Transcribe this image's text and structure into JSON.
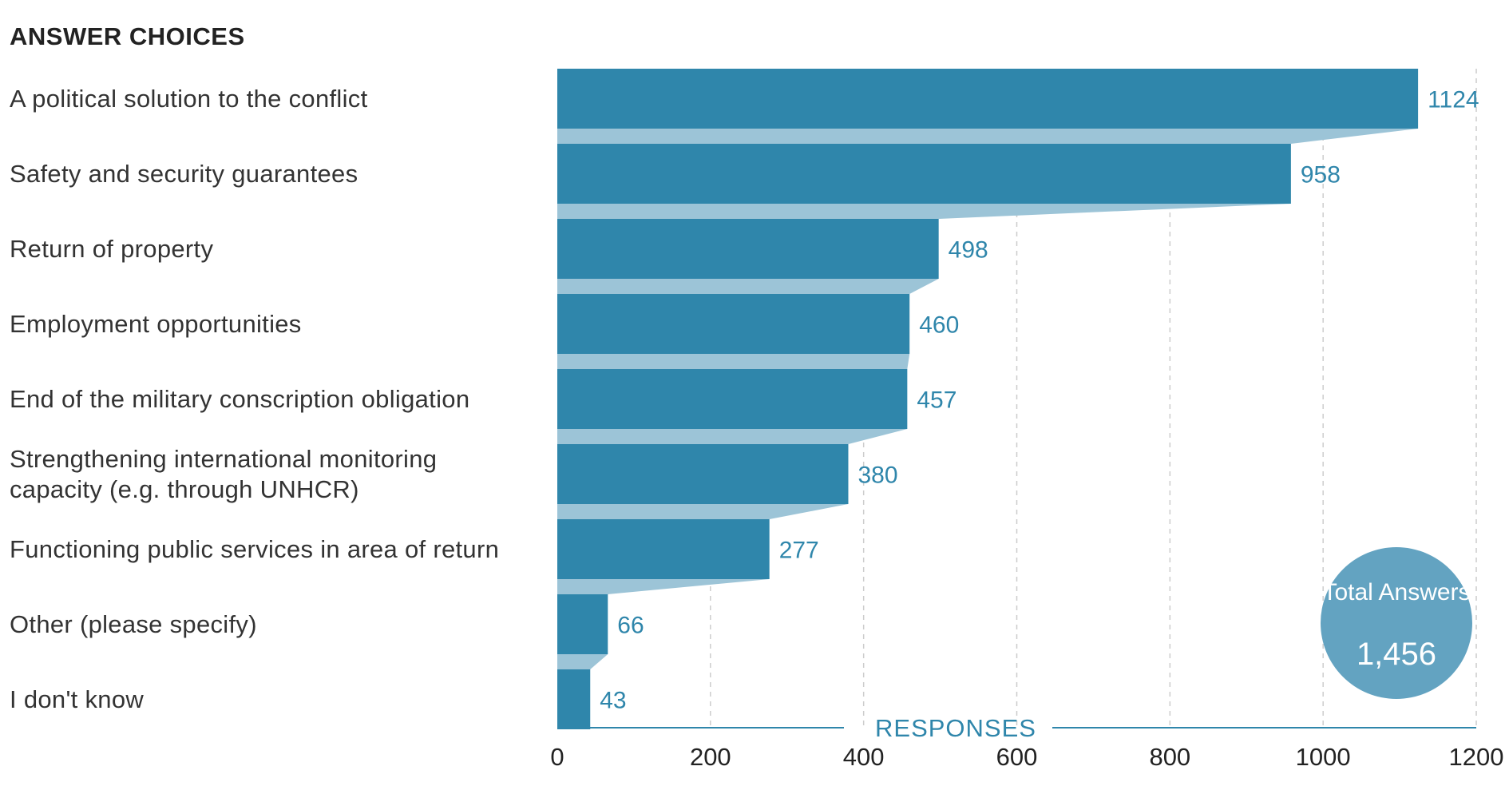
{
  "header": "ANSWER CHOICES",
  "chart_data": {
    "type": "bar",
    "orientation": "horizontal",
    "categories": [
      "A political solution to the conflict",
      "Safety and security guarantees",
      "Return of property",
      "Employment opportunities",
      "End of the military conscription obligation",
      "Strengthening international monitoring capacity (e.g. through UNHCR)",
      "Functioning public services in area of return",
      "Other (please specify)",
      "I don't know"
    ],
    "values": [
      1124,
      958,
      498,
      460,
      457,
      380,
      277,
      66,
      43
    ],
    "xlabel": "RESPONSES",
    "xlim": [
      0,
      1200
    ],
    "xticks": [
      "0",
      "200",
      "400",
      "600",
      "800",
      "1000",
      "1200"
    ],
    "grid": "vertical dashed",
    "colors": {
      "bar": "#2f86ab",
      "connector": "#9cc4d7",
      "label": "#2f86ab",
      "grid": "#cccccc"
    }
  },
  "total": {
    "label": "Total Answers",
    "value": "1,456",
    "color": "#63a3c1"
  }
}
